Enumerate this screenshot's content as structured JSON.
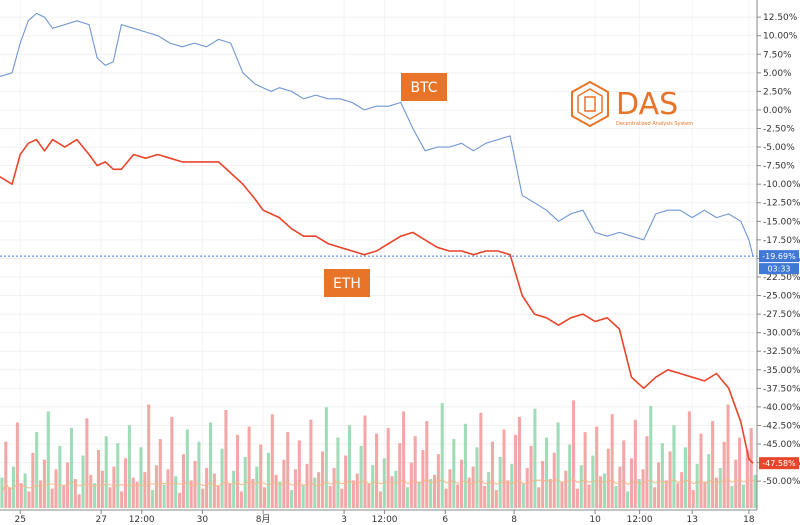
{
  "chart_data": {
    "type": "line",
    "title": "",
    "xlabel": "",
    "ylabel": "",
    "ylim": [
      -52,
      14
    ],
    "y_ticks": [
      "12.50%",
      "10.00%",
      "7.50%",
      "5.00%",
      "2.50%",
      "0.00%",
      "-2.50%",
      "-5.00%",
      "-7.50%",
      "-10.00%",
      "-12.50%",
      "-15.00%",
      "-17.50%",
      "-20.00%",
      "-22.50%",
      "-25.00%",
      "-27.50%",
      "-30.00%",
      "-32.50%",
      "-35.00%",
      "-37.50%",
      "-40.00%",
      "-42.50%",
      "-45.00%",
      "-47.50%",
      "-50.00%"
    ],
    "y_tick_values": [
      12.5,
      10,
      7.5,
      5,
      2.5,
      0,
      -2.5,
      -5,
      -7.5,
      -10,
      -12.5,
      -15,
      -17.5,
      -20,
      -22.5,
      -25,
      -27.5,
      -30,
      -32.5,
      -35,
      -37.5,
      -40,
      -42.5,
      -45,
      -47.5,
      -50
    ],
    "x_ticks": [
      "25",
      "27",
      "12:00",
      "30",
      "8月",
      "3",
      "12:00",
      "6",
      "8",
      "10",
      "12:00",
      "13",
      "18"
    ],
    "x_tick_positions": [
      0.5,
      2.5,
      3.5,
      5,
      6.5,
      8.5,
      9.5,
      11,
      12.7,
      14.7,
      15.8,
      17.1,
      18.5
    ],
    "x_range": [
      0,
      18.7
    ],
    "series": [
      {
        "name": "BTC",
        "color": "#6f97d4",
        "x": [
          0,
          0.3,
          0.5,
          0.7,
          0.9,
          1.1,
          1.3,
          1.6,
          1.9,
          2.2,
          2.4,
          2.6,
          2.8,
          3.0,
          3.3,
          3.6,
          3.9,
          4.2,
          4.5,
          4.8,
          5.1,
          5.4,
          5.7,
          6.0,
          6.3,
          6.5,
          6.7,
          6.9,
          7.2,
          7.5,
          7.8,
          8.1,
          8.4,
          8.7,
          9.0,
          9.3,
          9.6,
          9.9,
          10.2,
          10.5,
          10.8,
          11.1,
          11.4,
          11.7,
          12.0,
          12.3,
          12.6,
          12.9,
          13.2,
          13.5,
          13.8,
          14.1,
          14.4,
          14.7,
          15.0,
          15.3,
          15.6,
          15.9,
          16.2,
          16.5,
          16.8,
          17.1,
          17.4,
          17.7,
          18.0,
          18.3,
          18.5,
          18.6
        ],
        "values": [
          4.5,
          5,
          9,
          12,
          13,
          12.5,
          11,
          11.5,
          12,
          11.5,
          7,
          6,
          6.5,
          11.5,
          11,
          10.5,
          10,
          9,
          8.5,
          9,
          8.5,
          9.5,
          9,
          5,
          3.5,
          3,
          2.5,
          3,
          2.5,
          1.5,
          2,
          1.5,
          1.5,
          1,
          0,
          0.5,
          0.5,
          1,
          -2.5,
          -5.5,
          -5,
          -5,
          -4.5,
          -5.5,
          -4.5,
          -4,
          -3.5,
          -11.5,
          -12.5,
          -13.5,
          -15,
          -14,
          -13.5,
          -16.5,
          -17,
          -16.5,
          -17,
          -17.5,
          -14,
          -13.5,
          -13.5,
          -14.5,
          -13.5,
          -14.5,
          -14,
          -15,
          -17.5,
          -19.69
        ]
      },
      {
        "name": "ETH",
        "color": "#e8452a",
        "x": [
          0,
          0.3,
          0.5,
          0.7,
          0.9,
          1.1,
          1.3,
          1.6,
          1.9,
          2.2,
          2.4,
          2.6,
          2.8,
          3.0,
          3.3,
          3.6,
          3.9,
          4.2,
          4.5,
          4.8,
          5.1,
          5.4,
          5.7,
          6.0,
          6.3,
          6.5,
          6.7,
          6.9,
          7.2,
          7.5,
          7.8,
          8.1,
          8.4,
          8.7,
          9.0,
          9.3,
          9.6,
          9.9,
          10.2,
          10.5,
          10.8,
          11.1,
          11.4,
          11.7,
          12.0,
          12.3,
          12.6,
          12.9,
          13.2,
          13.5,
          13.8,
          14.1,
          14.4,
          14.7,
          15.0,
          15.3,
          15.6,
          15.9,
          16.2,
          16.5,
          16.8,
          17.1,
          17.4,
          17.7,
          18.0,
          18.3,
          18.5,
          18.6
        ],
        "values": [
          -9,
          -10,
          -6,
          -4.5,
          -4,
          -5.5,
          -4,
          -5,
          -4,
          -6,
          -7.5,
          -7,
          -8,
          -8,
          -6,
          -6.5,
          -6,
          -6.5,
          -7,
          -7,
          -7,
          -7,
          -8.5,
          -10,
          -12,
          -13.5,
          -14,
          -14.5,
          -16,
          -17,
          -17,
          -18,
          -18.5,
          -19,
          -19.5,
          -19,
          -18,
          -17,
          -16.5,
          -17.5,
          -18.5,
          -19,
          -19,
          -19.5,
          -19,
          -19,
          -19.5,
          -25,
          -27.5,
          -28,
          -29,
          -28,
          -27.5,
          -28.5,
          -28,
          -29.5,
          -36,
          -37.5,
          -36,
          -35,
          -35.5,
          -36,
          -36.5,
          -35.5,
          -37.5,
          -42,
          -47,
          -47.58
        ]
      }
    ],
    "current_values": {
      "BTC": "-19.69%",
      "ETH": "-47.58%",
      "timer": "03:33"
    },
    "volume": {
      "ylim": [
        0,
        100
      ],
      "heights": [
        22,
        48,
        15,
        30,
        62,
        18,
        25,
        12,
        40,
        55,
        20,
        35,
        70,
        14,
        28,
        45,
        16,
        33,
        58,
        21,
        10,
        38,
        65,
        24,
        18,
        42,
        27,
        52,
        15,
        30,
        47,
        12,
        36,
        60,
        22,
        19,
        44,
        26,
        75,
        13,
        31,
        50,
        17,
        28,
        66,
        23,
        11,
        39,
        57,
        20,
        34,
        48,
        14,
        29,
        62,
        25,
        16,
        43,
        71,
        18,
        27,
        53,
        12,
        37,
        59,
        21,
        30,
        46,
        15,
        40,
        68,
        24,
        19,
        35,
        55,
        13,
        28,
        49,
        17,
        32,
        64,
        22,
        26,
        41,
        73,
        16,
        29,
        51,
        14,
        38,
        60,
        20,
        25,
        45,
        67,
        18,
        31,
        54,
        12,
        36,
        58,
        23,
        27,
        47,
        70,
        15,
        33,
        52,
        19,
        42,
        63,
        21,
        24,
        39,
        76,
        14,
        28,
        50,
        17,
        35,
        61,
        22,
        30,
        44,
        69,
        16,
        26,
        48,
        13,
        37,
        57,
        20,
        32,
        53,
        66,
        18,
        29,
        45,
        72,
        15,
        34,
        51,
        21,
        40,
        62,
        19,
        27,
        46,
        78,
        14,
        31,
        55,
        17,
        38,
        59,
        23,
        25,
        43,
        68,
        16,
        30,
        49,
        12,
        36,
        64,
        21,
        28,
        52,
        74,
        15,
        33,
        47,
        20,
        41,
        60,
        18,
        26,
        44,
        70,
        13,
        32,
        54,
        19,
        39,
        63,
        22,
        29,
        48,
        75,
        16,
        35,
        51,
        17,
        42,
        58,
        24
      ]
    },
    "tags": [
      "BTC",
      "ETH"
    ]
  },
  "logo": {
    "name": "DAS",
    "tagline": "Decentralized Analysis System"
  },
  "colors": {
    "btc": "#6f97d4",
    "eth": "#e8452a",
    "tag": "#e8742a",
    "vol_up": "#7fd0a0",
    "vol_down": "#f08a8a",
    "ma": "#f5b98a",
    "badge_blue": "#3f78d6",
    "badge_red": "#e8452a"
  }
}
